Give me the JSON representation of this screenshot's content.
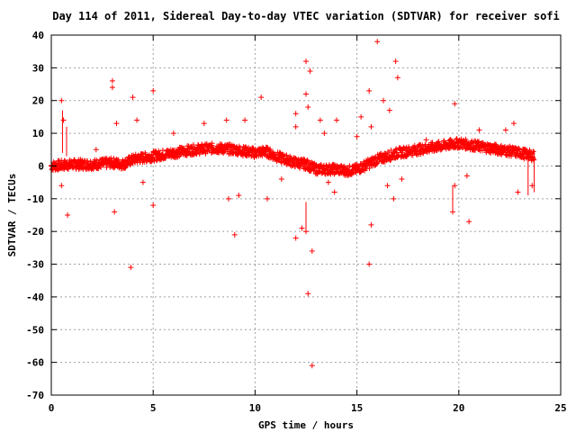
{
  "chart_data": {
    "type": "scatter",
    "title": "Day 114 of 2011, Sidereal Day-to-day VTEC variation (SDTVAR) for receiver sofi",
    "xlabel": "GPS time / hours",
    "ylabel": "SDTVAR / TECUs",
    "xlim": [
      0,
      25
    ],
    "ylim": [
      -70,
      40
    ],
    "xticks": [
      0,
      5,
      10,
      15,
      20,
      25
    ],
    "yticks": [
      40,
      30,
      20,
      10,
      0,
      -10,
      -20,
      -30,
      -40,
      -50,
      -60,
      -70
    ],
    "grid": true,
    "marker": "+",
    "color": "#ff0000",
    "band": {
      "x": [
        0,
        1,
        2,
        3,
        3.5,
        4,
        5,
        6,
        7,
        8,
        9,
        10,
        10.5,
        11,
        11.5,
        12,
        12.5,
        13,
        14,
        14.5,
        15,
        16,
        17,
        18,
        19,
        20,
        21,
        22,
        23,
        23.7
      ],
      "y": [
        0,
        0.5,
        0.5,
        1,
        0.5,
        2,
        3,
        4,
        5,
        5.5,
        5,
        4,
        4.5,
        3,
        2,
        1,
        0.5,
        -1,
        -1,
        -1.5,
        -1,
        2,
        4,
        5,
        6,
        7,
        6,
        5,
        4,
        3
      ],
      "half_width": 1.5
    },
    "outliers": [
      {
        "x": 0.5,
        "y": 20
      },
      {
        "x": 0.8,
        "y": -15
      },
      {
        "x": 0.6,
        "y": 14
      },
      {
        "x": 0.5,
        "y": -6
      },
      {
        "x": 3.0,
        "y": 26
      },
      {
        "x": 3.0,
        "y": 24
      },
      {
        "x": 3.2,
        "y": 13
      },
      {
        "x": 3.1,
        "y": -14
      },
      {
        "x": 3.9,
        "y": -31
      },
      {
        "x": 4.0,
        "y": 21
      },
      {
        "x": 4.2,
        "y": 14
      },
      {
        "x": 5.0,
        "y": 23
      },
      {
        "x": 4.5,
        "y": -5
      },
      {
        "x": 5.0,
        "y": -12
      },
      {
        "x": 7.5,
        "y": 13
      },
      {
        "x": 8.6,
        "y": 14
      },
      {
        "x": 8.7,
        "y": -10
      },
      {
        "x": 9.0,
        "y": -21
      },
      {
        "x": 9.2,
        "y": -9
      },
      {
        "x": 9.5,
        "y": 14
      },
      {
        "x": 10.3,
        "y": 21
      },
      {
        "x": 10.6,
        "y": -10
      },
      {
        "x": 11.3,
        "y": -4
      },
      {
        "x": 12.0,
        "y": 16
      },
      {
        "x": 12.0,
        "y": 12
      },
      {
        "x": 12.0,
        "y": -22
      },
      {
        "x": 12.3,
        "y": -19
      },
      {
        "x": 12.5,
        "y": 32
      },
      {
        "x": 12.7,
        "y": 29
      },
      {
        "x": 12.5,
        "y": 22
      },
      {
        "x": 12.6,
        "y": 18
      },
      {
        "x": 12.5,
        "y": -20
      },
      {
        "x": 12.6,
        "y": -39
      },
      {
        "x": 12.8,
        "y": -26
      },
      {
        "x": 12.8,
        "y": -61
      },
      {
        "x": 13.2,
        "y": 14
      },
      {
        "x": 13.4,
        "y": 10
      },
      {
        "x": 13.6,
        "y": -5
      },
      {
        "x": 13.9,
        "y": -8
      },
      {
        "x": 15.0,
        "y": 9
      },
      {
        "x": 15.2,
        "y": 15
      },
      {
        "x": 15.6,
        "y": 23
      },
      {
        "x": 15.6,
        "y": -30
      },
      {
        "x": 15.7,
        "y": -18
      },
      {
        "x": 15.7,
        "y": 12
      },
      {
        "x": 16.0,
        "y": 38
      },
      {
        "x": 16.3,
        "y": 20
      },
      {
        "x": 16.5,
        "y": -6
      },
      {
        "x": 16.6,
        "y": 17
      },
      {
        "x": 16.9,
        "y": 32
      },
      {
        "x": 17.0,
        "y": 27
      },
      {
        "x": 16.8,
        "y": -10
      },
      {
        "x": 17.2,
        "y": -4
      },
      {
        "x": 19.7,
        "y": -14
      },
      {
        "x": 19.8,
        "y": 19
      },
      {
        "x": 19.8,
        "y": -6
      },
      {
        "x": 20.4,
        "y": -3
      },
      {
        "x": 20.5,
        "y": -17
      },
      {
        "x": 21.0,
        "y": 11
      },
      {
        "x": 22.3,
        "y": 11
      },
      {
        "x": 22.7,
        "y": 13
      },
      {
        "x": 22.9,
        "y": -8
      },
      {
        "x": 23.6,
        "y": -6
      },
      {
        "x": 14.0,
        "y": 14
      },
      {
        "x": 2.2,
        "y": 5
      },
      {
        "x": 6.0,
        "y": 10
      },
      {
        "x": 18.4,
        "y": 8
      }
    ],
    "error_bars": [
      {
        "x": 0.55,
        "y1": 4,
        "y2": 17
      },
      {
        "x": 0.75,
        "y1": 3,
        "y2": 12
      },
      {
        "x": 12.5,
        "y1": -20,
        "y2": -11
      },
      {
        "x": 19.7,
        "y1": -14,
        "y2": -6
      },
      {
        "x": 23.4,
        "y1": -9,
        "y2": 4
      },
      {
        "x": 23.7,
        "y1": -8,
        "y2": 5
      }
    ]
  }
}
